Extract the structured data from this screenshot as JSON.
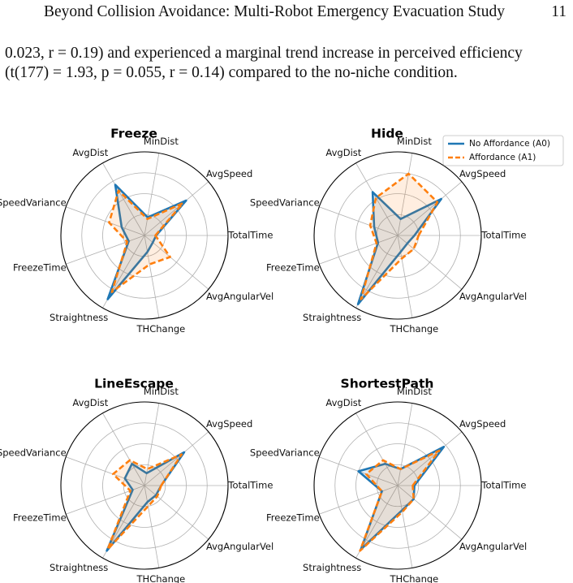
{
  "header": {
    "title": "Beyond Collision Avoidance: Multi-Robot Emergency Evacuation Study",
    "page": "11"
  },
  "paragraph": [
    "0.023, r = 0.19) and experienced a marginal trend increase in perceived efficiency",
    "(t(177) = 1.93, p = 0.055, r = 0.14) compared to the no-niche condition."
  ],
  "chart_data": [
    {
      "type": "radar",
      "title": "Freeze",
      "categories": [
        "TotalTime",
        "AvgSpeed",
        "MinDist",
        "AvgDist",
        "SpeedVariance",
        "FreezeTime",
        "Straightness",
        "THChange",
        "AvgAngularVel"
      ],
      "rlim": [
        0,
        1
      ],
      "rticks": [
        0.25,
        0.5,
        0.75
      ],
      "series": [
        {
          "color": "#1f77b4",
          "dash": false,
          "values": [
            0.14,
            0.65,
            0.22,
            0.7,
            0.29,
            0.2,
            0.88,
            0.2,
            0.13
          ]
        },
        {
          "color": "#ff7f0e",
          "dash": true,
          "values": [
            0.13,
            0.6,
            0.2,
            0.62,
            0.45,
            0.22,
            0.78,
            0.35,
            0.4
          ]
        }
      ]
    },
    {
      "type": "radar",
      "title": "Hide",
      "legend": "upper right",
      "categories": [
        "TotalTime",
        "AvgSpeed",
        "MinDist",
        "AvgDist",
        "SpeedVariance",
        "FreezeTime",
        "Straightness",
        "THChange",
        "AvgAngularVel"
      ],
      "rlim": [
        0,
        1
      ],
      "rticks": [
        0.25,
        0.5,
        0.75
      ],
      "series": [
        {
          "name": "No Affordance (A0)",
          "color": "#1f77b4",
          "dash": false,
          "values": [
            0.2,
            0.68,
            0.2,
            0.6,
            0.3,
            0.25,
            0.95,
            0.2,
            0.15
          ]
        },
        {
          "name": "Affordance (A1)",
          "color": "#ff7f0e",
          "dash": true,
          "values": [
            0.25,
            0.62,
            0.75,
            0.52,
            0.35,
            0.27,
            0.88,
            0.28,
            0.25
          ]
        }
      ]
    },
    {
      "type": "radar",
      "title": "LineEscape",
      "categories": [
        "TotalTime",
        "AvgSpeed",
        "MinDist",
        "AvgDist",
        "SpeedVariance",
        "FreezeTime",
        "Straightness",
        "THChange",
        "AvgAngularVel"
      ],
      "rlim": [
        0,
        1
      ],
      "rticks": [
        0.25,
        0.5,
        0.75
      ],
      "series": [
        {
          "color": "#1f77b4",
          "dash": false,
          "values": [
            0.2,
            0.62,
            0.15,
            0.3,
            0.25,
            0.15,
            0.9,
            0.2,
            0.18
          ]
        },
        {
          "color": "#ff7f0e",
          "dash": true,
          "values": [
            0.2,
            0.58,
            0.2,
            0.35,
            0.4,
            0.18,
            0.88,
            0.25,
            0.2
          ]
        }
      ]
    },
    {
      "type": "radar",
      "title": "ShortestPath",
      "categories": [
        "TotalTime",
        "AvgSpeed",
        "MinDist",
        "AvgDist",
        "SpeedVariance",
        "FreezeTime",
        "Straightness",
        "THChange",
        "AvgAngularVel"
      ],
      "rlim": [
        0,
        1
      ],
      "rticks": [
        0.25,
        0.5,
        0.75
      ],
      "series": [
        {
          "color": "#1f77b4",
          "dash": false,
          "values": [
            0.2,
            0.72,
            0.2,
            0.3,
            0.5,
            0.2,
            0.88,
            0.3,
            0.25
          ]
        },
        {
          "color": "#ff7f0e",
          "dash": true,
          "values": [
            0.18,
            0.65,
            0.2,
            0.35,
            0.4,
            0.2,
            0.9,
            0.32,
            0.25
          ]
        }
      ]
    }
  ]
}
